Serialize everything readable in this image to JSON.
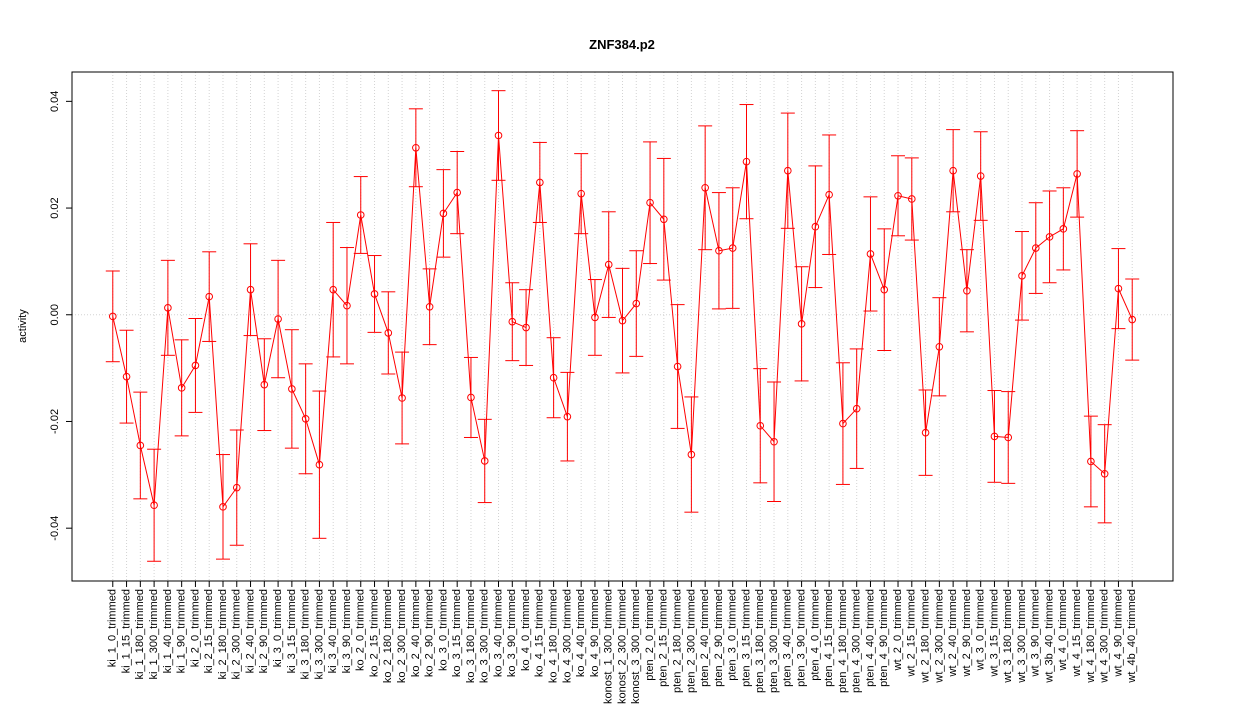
{
  "chart_data": {
    "type": "errorbar",
    "title": "ZNF384.p2",
    "y_label": "activity",
    "categories": [
      "ki_1_0_trimmed",
      "ki_1_15_trimmed",
      "ki_1_180_trimmed",
      "ki_1_300_trimmed",
      "ki_1_40_trimmed",
      "ki_1_90_trimmed",
      "ki_2_0_trimmed",
      "ki_2_15_trimmed",
      "ki_2_180_trimmed",
      "ki_2_300_trimmed",
      "ki_2_40_trimmed",
      "ki_2_90_trimmed",
      "ki_3_0_trimmed",
      "ki_3_15_trimmed",
      "ki_3_180_trimmed",
      "ki_3_300_trimmed",
      "ki_3_40_trimmed",
      "ki_3_90_trimmed",
      "ko_2_0_trimmed",
      "ko_2_15_trimmed",
      "ko_2_180_trimmed",
      "ko_2_300_trimmed",
      "ko_2_40_trimmed",
      "ko_2_90_trimmed",
      "ko_3_0_trimmed",
      "ko_3_15_trimmed",
      "ko_3_180_trimmed",
      "ko_3_300_trimmed",
      "ko_3_40_trimmed",
      "ko_3_90_trimmed",
      "ko_4_0_trimmed",
      "ko_4_15_trimmed",
      "ko_4_180_trimmed",
      "ko_4_300_trimmed",
      "ko_4_40_trimmed",
      "ko_4_90_trimmed",
      "konost_1_300_trimmed",
      "konost_2_300_trimmed",
      "konost_3_300_trimmed",
      "pten_2_0_trimmed",
      "pten_2_15_trimmed",
      "pten_2_180_trimmed",
      "pten_2_300_trimmed",
      "pten_2_40_trimmed",
      "pten_2_90_trimmed",
      "pten_3_0_trimmed",
      "pten_3_15_trimmed",
      "pten_3_180_trimmed",
      "pten_3_300_trimmed",
      "pten_3_40_trimmed",
      "pten_3_90_trimmed",
      "pten_4_0_trimmed",
      "pten_4_15_trimmed",
      "pten_4_180_trimmed",
      "pten_4_300_trimmed",
      "pten_4_40_trimmed",
      "pten_4_90_trimmed",
      "wt_2_0_trimmed",
      "wt_2_15_trimmed",
      "wt_2_180_trimmed",
      "wt_2_300_trimmed",
      "wt_2_40_trimmed",
      "wt_2_90_trimmed",
      "wt_3_0_trimmed",
      "wt_3_15_trimmed",
      "wt_3_180_trimmed",
      "wt_3_300_trimmed",
      "wt_3_90_trimmed",
      "wt_3b_40_trimmed",
      "wt_4_0_trimmed",
      "wt_4_15_trimmed",
      "wt_4_180_trimmed",
      "wt_4_300_trimmed",
      "wt_4_90_trimmed",
      "wt_4b_40_trimmed"
    ],
    "values": [
      -0.0003,
      -0.0116,
      -0.0245,
      -0.0357,
      0.0013,
      -0.0137,
      -0.0095,
      0.0034,
      -0.036,
      -0.0324,
      0.0047,
      -0.0131,
      -0.0008,
      -0.0139,
      -0.0195,
      -0.0281,
      0.0047,
      0.0017,
      0.0187,
      0.0039,
      -0.0034,
      -0.0156,
      0.0313,
      0.0015,
      0.019,
      0.0229,
      -0.0155,
      -0.0274,
      0.0336,
      -0.0013,
      -0.0024,
      0.0248,
      -0.0118,
      -0.0191,
      0.0227,
      -0.0005,
      0.0094,
      -0.0011,
      0.0021,
      0.021,
      0.0179,
      -0.0097,
      -0.0262,
      0.0238,
      0.012,
      0.0125,
      0.0287,
      -0.0208,
      -0.0238,
      0.027,
      -0.0017,
      0.0165,
      0.0225,
      -0.0204,
      -0.0176,
      0.0114,
      0.0047,
      0.0223,
      0.0217,
      -0.0221,
      -0.006,
      0.027,
      0.0045,
      0.026,
      -0.0228,
      -0.023,
      0.0073,
      0.0125,
      0.0146,
      0.0161,
      0.0264,
      -0.0275,
      -0.0298,
      0.0049,
      -0.0009
    ],
    "errors": [
      0.0085,
      0.0087,
      0.01,
      0.0105,
      0.0089,
      0.009,
      0.0088,
      0.0084,
      0.0098,
      0.0108,
      0.0086,
      0.0086,
      0.011,
      0.0111,
      0.0103,
      0.0138,
      0.0126,
      0.0109,
      0.0072,
      0.0072,
      0.0077,
      0.0086,
      0.0073,
      0.0071,
      0.0082,
      0.0077,
      0.0075,
      0.0078,
      0.0084,
      0.0073,
      0.0071,
      0.0075,
      0.0075,
      0.0083,
      0.0075,
      0.0071,
      0.0099,
      0.0098,
      0.0099,
      0.0114,
      0.0114,
      0.0116,
      0.0108,
      0.0116,
      0.0109,
      0.0113,
      0.0107,
      0.0107,
      0.0112,
      0.0108,
      0.0107,
      0.0114,
      0.0112,
      0.0114,
      0.0112,
      0.0107,
      0.0114,
      0.0075,
      0.0077,
      0.008,
      0.0092,
      0.0077,
      0.0077,
      0.0083,
      0.0086,
      0.0086,
      0.0083,
      0.0085,
      0.0086,
      0.0077,
      0.0081,
      0.0085,
      0.0092,
      0.0075,
      0.0076
    ],
    "color": "#ff0000",
    "ylim": [
      -0.0499,
      0.0455
    ],
    "yticks": [
      -0.04,
      -0.02,
      {
        "value": 0,
        "label": "0.00"
      },
      0.02,
      0.04
    ],
    "grid": true
  }
}
